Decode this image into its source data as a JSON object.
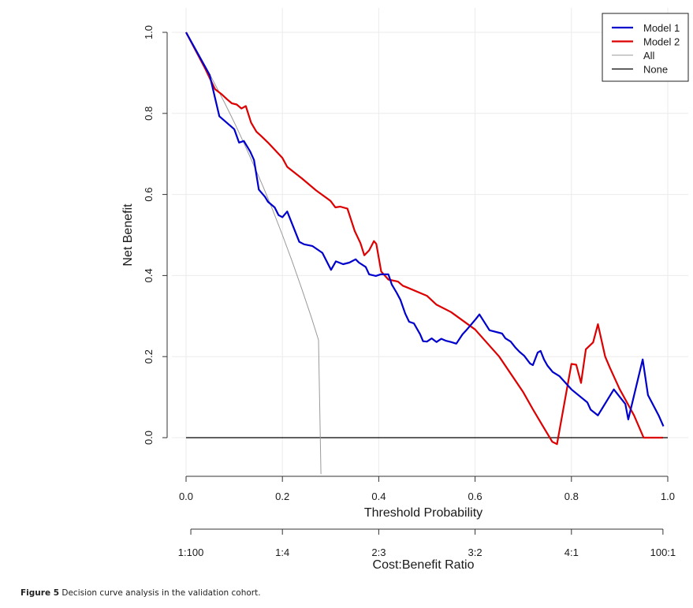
{
  "caption": {
    "label": "Figure 5",
    "text": "Decision curve analysis in the validation cohort."
  },
  "chart_data": {
    "type": "line",
    "title": "",
    "xlabel": "Threshold Probability",
    "ylabel": "Net Benefit",
    "secondary_xlabel": "Cost:Benefit Ratio",
    "xlim": [
      0.0,
      1.0
    ],
    "ylim": [
      -0.09,
      1.0
    ],
    "grid": true,
    "legend_position": "top-right",
    "x_ticks": [
      "0.0",
      "0.2",
      "0.4",
      "0.6",
      "0.8",
      "1.0"
    ],
    "x_tick_values": [
      0.0,
      0.2,
      0.4,
      0.6,
      0.8,
      1.0
    ],
    "y_ticks": [
      "0.0",
      "0.2",
      "0.4",
      "0.6",
      "0.8",
      "1.0"
    ],
    "y_tick_values": [
      0.0,
      0.2,
      0.4,
      0.6,
      0.8,
      1.0
    ],
    "secondary_x_ticks": [
      "1:100",
      "1:4",
      "2:3",
      "3:2",
      "4:1",
      "100:1"
    ],
    "secondary_x_tick_values": [
      0.0099,
      0.2,
      0.4,
      0.6,
      0.8,
      0.99
    ],
    "series": [
      {
        "name": "Model 1",
        "color": "#0000cc",
        "x": [
          0.0,
          0.049,
          0.069,
          0.1,
          0.11,
          0.12,
          0.133,
          0.141,
          0.151,
          0.164,
          0.17,
          0.184,
          0.192,
          0.2,
          0.21,
          0.235,
          0.245,
          0.262,
          0.283,
          0.301,
          0.311,
          0.326,
          0.339,
          0.352,
          0.359,
          0.373,
          0.38,
          0.394,
          0.404,
          0.42,
          0.427,
          0.437,
          0.445,
          0.455,
          0.463,
          0.473,
          0.486,
          0.492,
          0.5,
          0.51,
          0.52,
          0.53,
          0.54,
          0.55,
          0.561,
          0.574,
          0.581,
          0.601,
          0.609,
          0.63,
          0.656,
          0.663,
          0.674,
          0.684,
          0.692,
          0.702,
          0.714,
          0.72,
          0.73,
          0.736,
          0.743,
          0.75,
          0.761,
          0.775,
          0.8,
          0.833,
          0.84,
          0.855,
          0.888,
          0.912,
          0.918,
          0.948,
          0.959,
          0.981,
          0.991
        ],
        "y": [
          1.0,
          0.895,
          0.793,
          0.761,
          0.728,
          0.732,
          0.706,
          0.685,
          0.612,
          0.594,
          0.582,
          0.568,
          0.549,
          0.544,
          0.558,
          0.483,
          0.477,
          0.473,
          0.456,
          0.414,
          0.435,
          0.428,
          0.432,
          0.44,
          0.432,
          0.421,
          0.403,
          0.399,
          0.403,
          0.403,
          0.378,
          0.358,
          0.34,
          0.306,
          0.286,
          0.282,
          0.255,
          0.238,
          0.237,
          0.245,
          0.236,
          0.244,
          0.239,
          0.236,
          0.232,
          0.255,
          0.264,
          0.292,
          0.304,
          0.265,
          0.257,
          0.245,
          0.237,
          0.222,
          0.212,
          0.202,
          0.183,
          0.179,
          0.21,
          0.214,
          0.193,
          0.178,
          0.162,
          0.152,
          0.119,
          0.087,
          0.069,
          0.055,
          0.119,
          0.083,
          0.045,
          0.193,
          0.105,
          0.055,
          0.028
        ]
      },
      {
        "name": "Model 2",
        "color": "#dd0000",
        "x": [
          0.0,
          0.02,
          0.04,
          0.06,
          0.073,
          0.085,
          0.095,
          0.105,
          0.115,
          0.124,
          0.135,
          0.146,
          0.157,
          0.17,
          0.2,
          0.21,
          0.24,
          0.27,
          0.3,
          0.31,
          0.32,
          0.335,
          0.35,
          0.362,
          0.37,
          0.38,
          0.39,
          0.395,
          0.405,
          0.42,
          0.44,
          0.45,
          0.46,
          0.5,
          0.52,
          0.55,
          0.6,
          0.65,
          0.7,
          0.72,
          0.74,
          0.76,
          0.77,
          0.8,
          0.81,
          0.82,
          0.83,
          0.845,
          0.855,
          0.87,
          0.88,
          0.9,
          0.93,
          0.95,
          0.99
        ],
        "y": [
          1.0,
          0.955,
          0.91,
          0.86,
          0.848,
          0.835,
          0.825,
          0.822,
          0.812,
          0.818,
          0.777,
          0.755,
          0.743,
          0.728,
          0.69,
          0.668,
          0.64,
          0.61,
          0.584,
          0.568,
          0.57,
          0.565,
          0.51,
          0.48,
          0.45,
          0.462,
          0.485,
          0.478,
          0.41,
          0.39,
          0.385,
          0.375,
          0.37,
          0.35,
          0.328,
          0.31,
          0.267,
          0.2,
          0.112,
          0.07,
          0.03,
          -0.01,
          -0.016,
          0.182,
          0.18,
          0.135,
          0.218,
          0.235,
          0.28,
          0.2,
          0.172,
          0.12,
          0.055,
          0.0,
          0.0
        ]
      },
      {
        "name": "All",
        "color": "#999999",
        "x": [
          0.0,
          0.02,
          0.04,
          0.06,
          0.08,
          0.1,
          0.12,
          0.14,
          0.16,
          0.18,
          0.2,
          0.22,
          0.24,
          0.26,
          0.275,
          0.28
        ],
        "y": [
          1.0,
          0.959,
          0.917,
          0.872,
          0.826,
          0.778,
          0.727,
          0.674,
          0.619,
          0.561,
          0.5,
          0.436,
          0.368,
          0.297,
          0.241,
          -0.09
        ]
      },
      {
        "name": "None",
        "color": "#000000",
        "x": [
          0.0,
          1.0
        ],
        "y": [
          0.0,
          0.0
        ]
      }
    ],
    "prevalence": 1.0
  }
}
